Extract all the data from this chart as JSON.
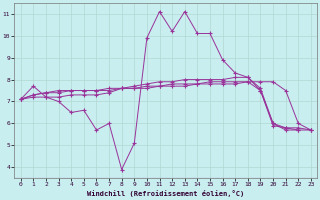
{
  "xlabel": "Windchill (Refroidissement éolien,°C)",
  "background_color": "#c8eef0",
  "grid_color": "#b0d8d0",
  "line_color": "#993399",
  "x_ticks": [
    0,
    1,
    2,
    3,
    4,
    5,
    6,
    7,
    8,
    9,
    10,
    11,
    12,
    13,
    14,
    15,
    16,
    17,
    18,
    19,
    20,
    21,
    22,
    23
  ],
  "y_ticks": [
    4,
    5,
    6,
    7,
    8,
    9,
    10,
    11
  ],
  "xlim": [
    -0.5,
    23.5
  ],
  "ylim": [
    3.5,
    11.5
  ],
  "series": [
    {
      "x": [
        0,
        1,
        2,
        3,
        4,
        5,
        6,
        7,
        8,
        9,
        10,
        11,
        12,
        13,
        14,
        15,
        16,
        17,
        18,
        19,
        20,
        21,
        22
      ],
      "y": [
        7.1,
        7.7,
        7.2,
        7.0,
        6.5,
        6.6,
        5.7,
        6.0,
        3.9,
        5.1,
        9.9,
        11.1,
        10.2,
        11.1,
        10.1,
        10.1,
        8.9,
        8.3,
        8.1,
        7.5,
        5.9,
        5.8,
        5.7
      ]
    },
    {
      "x": [
        0,
        1,
        2,
        3,
        4,
        5,
        6,
        7,
        8,
        9,
        10,
        11,
        12,
        13,
        14,
        15,
        16,
        17,
        18,
        19,
        20,
        21,
        22,
        23
      ],
      "y": [
        7.1,
        7.2,
        7.2,
        7.2,
        7.3,
        7.3,
        7.3,
        7.4,
        7.6,
        7.7,
        7.8,
        7.9,
        7.9,
        8.0,
        8.0,
        8.0,
        8.0,
        8.1,
        8.1,
        7.6,
        6.0,
        5.8,
        5.8,
        5.7
      ]
    },
    {
      "x": [
        0,
        1,
        2,
        3,
        4,
        5,
        6,
        7,
        8,
        9,
        10,
        11,
        12,
        13,
        14,
        15,
        16,
        17,
        18,
        19,
        20,
        21,
        22,
        23
      ],
      "y": [
        7.1,
        7.3,
        7.4,
        7.4,
        7.5,
        7.5,
        7.5,
        7.5,
        7.6,
        7.6,
        7.6,
        7.7,
        7.7,
        7.7,
        7.8,
        7.8,
        7.8,
        7.8,
        7.9,
        7.9,
        7.9,
        7.5,
        6.0,
        5.7
      ]
    },
    {
      "x": [
        0,
        1,
        2,
        3,
        4,
        5,
        6,
        7,
        8,
        9,
        10,
        11,
        12,
        13,
        14,
        15,
        16,
        17,
        18,
        19,
        20,
        21,
        22,
        23
      ],
      "y": [
        7.1,
        7.3,
        7.4,
        7.5,
        7.5,
        7.5,
        7.5,
        7.6,
        7.6,
        7.6,
        7.7,
        7.7,
        7.8,
        7.8,
        7.8,
        7.9,
        7.9,
        7.9,
        7.9,
        7.5,
        6.0,
        5.7,
        5.7,
        5.7
      ]
    }
  ]
}
